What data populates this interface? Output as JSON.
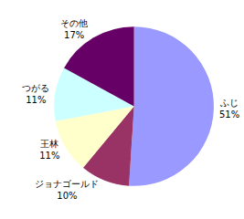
{
  "chart_data": {
    "type": "pie",
    "categories": [
      "ふじ",
      "ジョナゴールド",
      "王林",
      "つがる",
      "その他"
    ],
    "values": [
      51,
      10,
      11,
      11,
      17
    ],
    "value_labels": [
      "51%",
      "10%",
      "11%",
      "11%",
      "17%"
    ],
    "colors": [
      "#9999ff",
      "#993366",
      "#ffffcc",
      "#ccffff",
      "#660066"
    ],
    "data_labels": true
  }
}
